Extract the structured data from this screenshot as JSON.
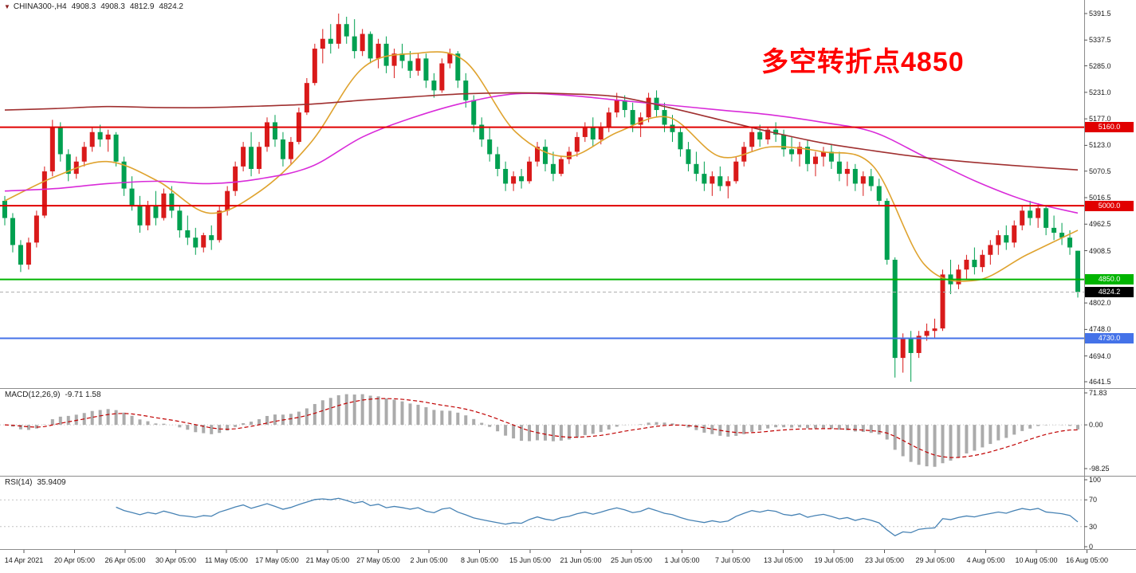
{
  "header": {
    "symbol": "CHINA300-,H4",
    "open": "4908.3",
    "high": "4908.3",
    "low": "4812.9",
    "close": "4824.2"
  },
  "annotation": {
    "text": "多空转折点4850",
    "color": "#FF0000"
  },
  "colors": {
    "bull": "#D91A1A",
    "bear": "#00A050",
    "macd_hist": "#ABABAB",
    "macd_signal": "#C00000",
    "rsi_line": "#4682B4",
    "separator": "#8C8C8C",
    "grid_dotted": "#C4C4C4",
    "current_line": "#B0B0B0"
  },
  "price_axis": {
    "labels": [
      "5391.5",
      "5337.5",
      "5285.0",
      "5231.0",
      "5177.0",
      "5123.0",
      "5070.5",
      "5016.5",
      "4962.5",
      "4908.5",
      "4802.0",
      "4748.0",
      "4694.0",
      "4641.5"
    ]
  },
  "levels": [
    {
      "value": 5160.0,
      "label": "5160.0",
      "color": "#E10000"
    },
    {
      "value": 5000.0,
      "label": "5000.0",
      "color": "#E10000"
    },
    {
      "value": 4850.0,
      "label": "4850.0",
      "color": "#00B400"
    },
    {
      "value": 4730.0,
      "label": "4730.0",
      "color": "#4472E8"
    }
  ],
  "current_price": {
    "value": 4824.2,
    "label": "4824.2",
    "color": "#000000"
  },
  "time_axis": [
    "14 Apr 2021",
    "20 Apr 05:00",
    "26 Apr 05:00",
    "30 Apr 05:00",
    "11 May 05:00",
    "17 May 05:00",
    "21 May 05:00",
    "27 May 05:00",
    "2 Jun 05:00",
    "8 Jun 05:00",
    "15 Jun 05:00",
    "21 Jun 05:00",
    "25 Jun 05:00",
    "1 Jul 05:00",
    "7 Jul 05:00",
    "13 Jul 05:00",
    "19 Jul 05:00",
    "23 Jul 05:00",
    "29 Jul 05:00",
    "4 Aug 05:00",
    "10 Aug 05:00",
    "16 Aug 05:00"
  ],
  "indicators": {
    "macd": {
      "name": "MACD(12,26,9)",
      "values": "-9.71 1.58",
      "axis": [
        "71.83",
        "0.00",
        "-98.25"
      ],
      "fast": 12,
      "slow": 26,
      "signal": 9
    },
    "rsi": {
      "name": "RSI(14)",
      "value": "35.9409",
      "axis": [
        "100",
        "70",
        "30",
        "0"
      ],
      "period": 14,
      "levels": [
        70,
        30
      ]
    }
  },
  "chart_data": {
    "type": "candlestick",
    "symbol": "CHINA300-",
    "timeframe": "H4",
    "ylim": [
      4641.5,
      5391.5
    ],
    "x_labels": [
      "14 Apr 2021",
      "20 Apr 05:00",
      "26 Apr 05:00",
      "30 Apr 05:00",
      "11 May 05:00",
      "17 May 05:00",
      "21 May 05:00",
      "27 May 05:00",
      "2 Jun 05:00",
      "8 Jun 05:00",
      "15 Jun 05:00",
      "21 Jun 05:00",
      "25 Jun 05:00",
      "1 Jul 05:00",
      "7 Jul 05:00",
      "13 Jul 05:00",
      "19 Jul 05:00",
      "23 Jul 05:00",
      "29 Jul 05:00",
      "4 Aug 05:00",
      "10 Aug 05:00",
      "16 Aug 05:00"
    ],
    "horizontal_levels": [
      5160.0,
      5000.0,
      4850.0,
      4730.0
    ],
    "last_price": 4824.2,
    "ohlc": [
      [
        5010,
        5020,
        4960,
        4975
      ],
      [
        4975,
        4985,
        4905,
        4920
      ],
      [
        4920,
        4930,
        4865,
        4880
      ],
      [
        4880,
        4935,
        4870,
        4925
      ],
      [
        4925,
        4990,
        4915,
        4980
      ],
      [
        4980,
        5080,
        4975,
        5070
      ],
      [
        5070,
        5175,
        5060,
        5160
      ],
      [
        5160,
        5170,
        5090,
        5105
      ],
      [
        5105,
        5115,
        5050,
        5065
      ],
      [
        5065,
        5100,
        5055,
        5090
      ],
      [
        5090,
        5130,
        5080,
        5120
      ],
      [
        5120,
        5160,
        5110,
        5150
      ],
      [
        5150,
        5165,
        5120,
        5135
      ],
      [
        5135,
        5155,
        5110,
        5145
      ],
      [
        5145,
        5150,
        5080,
        5090
      ],
      [
        5090,
        5100,
        5020,
        5035
      ],
      [
        5035,
        5060,
        4990,
        5000
      ],
      [
        5000,
        5020,
        4945,
        4960
      ],
      [
        4960,
        5010,
        4950,
        5000
      ],
      [
        5000,
        5030,
        4960,
        4975
      ],
      [
        4975,
        5035,
        4970,
        5025
      ],
      [
        5025,
        5040,
        4975,
        4990
      ],
      [
        4990,
        5000,
        4935,
        4950
      ],
      [
        4950,
        4980,
        4920,
        4935
      ],
      [
        4935,
        4955,
        4900,
        4915
      ],
      [
        4915,
        4945,
        4905,
        4940
      ],
      [
        4940,
        4960,
        4910,
        4930
      ],
      [
        4930,
        5000,
        4925,
        4990
      ],
      [
        4990,
        5040,
        4980,
        5030
      ],
      [
        5030,
        5090,
        5020,
        5080
      ],
      [
        5080,
        5130,
        5070,
        5120
      ],
      [
        5120,
        5150,
        5060,
        5075
      ],
      [
        5075,
        5130,
        5065,
        5120
      ],
      [
        5120,
        5180,
        5110,
        5170
      ],
      [
        5170,
        5185,
        5120,
        5135
      ],
      [
        5135,
        5150,
        5080,
        5095
      ],
      [
        5095,
        5140,
        5085,
        5130
      ],
      [
        5130,
        5200,
        5125,
        5190
      ],
      [
        5190,
        5260,
        5185,
        5250
      ],
      [
        5250,
        5330,
        5245,
        5320
      ],
      [
        5320,
        5360,
        5290,
        5340
      ],
      [
        5340,
        5370,
        5310,
        5330
      ],
      [
        5330,
        5391.5,
        5320,
        5370
      ],
      [
        5370,
        5385,
        5330,
        5345
      ],
      [
        5345,
        5380,
        5300,
        5315
      ],
      [
        5315,
        5360,
        5305,
        5350
      ],
      [
        5350,
        5355,
        5290,
        5300
      ],
      [
        5300,
        5340,
        5280,
        5330
      ],
      [
        5330,
        5345,
        5270,
        5285
      ],
      [
        5285,
        5320,
        5260,
        5310
      ],
      [
        5310,
        5330,
        5280,
        5295
      ],
      [
        5295,
        5315,
        5260,
        5275
      ],
      [
        5275,
        5310,
        5265,
        5300
      ],
      [
        5300,
        5310,
        5240,
        5255
      ],
      [
        5255,
        5270,
        5220,
        5235
      ],
      [
        5235,
        5300,
        5230,
        5290
      ],
      [
        5290,
        5320,
        5280,
        5310
      ],
      [
        5310,
        5315,
        5240,
        5255
      ],
      [
        5255,
        5270,
        5200,
        5215
      ],
      [
        5215,
        5225,
        5150,
        5165
      ],
      [
        5165,
        5180,
        5120,
        5135
      ],
      [
        5135,
        5160,
        5090,
        5105
      ],
      [
        5105,
        5120,
        5060,
        5075
      ],
      [
        5075,
        5090,
        5030,
        5045
      ],
      [
        5045,
        5070,
        5030,
        5060
      ],
      [
        5060,
        5075,
        5035,
        5050
      ],
      [
        5050,
        5100,
        5045,
        5090
      ],
      [
        5090,
        5130,
        5080,
        5120
      ],
      [
        5120,
        5135,
        5070,
        5085
      ],
      [
        5085,
        5110,
        5050,
        5065
      ],
      [
        5065,
        5100,
        5060,
        5095
      ],
      [
        5095,
        5120,
        5085,
        5110
      ],
      [
        5110,
        5150,
        5100,
        5140
      ],
      [
        5140,
        5170,
        5130,
        5160
      ],
      [
        5160,
        5180,
        5120,
        5135
      ],
      [
        5135,
        5170,
        5125,
        5160
      ],
      [
        5160,
        5200,
        5150,
        5190
      ],
      [
        5190,
        5230,
        5180,
        5215
      ],
      [
        5215,
        5225,
        5180,
        5195
      ],
      [
        5195,
        5210,
        5150,
        5165
      ],
      [
        5165,
        5190,
        5140,
        5180
      ],
      [
        5180,
        5230,
        5170,
        5220
      ],
      [
        5220,
        5235,
        5180,
        5195
      ],
      [
        5195,
        5210,
        5150,
        5165
      ],
      [
        5165,
        5185,
        5130,
        5150
      ],
      [
        5150,
        5160,
        5100,
        5115
      ],
      [
        5115,
        5130,
        5070,
        5085
      ],
      [
        5085,
        5110,
        5050,
        5065
      ],
      [
        5065,
        5090,
        5030,
        5045
      ],
      [
        5045,
        5070,
        5020,
        5060
      ],
      [
        5060,
        5080,
        5030,
        5040
      ],
      [
        5040,
        5060,
        5015,
        5050
      ],
      [
        5050,
        5100,
        5045,
        5090
      ],
      [
        5090,
        5130,
        5080,
        5120
      ],
      [
        5120,
        5160,
        5110,
        5150
      ],
      [
        5150,
        5165,
        5120,
        5135
      ],
      [
        5135,
        5160,
        5125,
        5155
      ],
      [
        5155,
        5170,
        5130,
        5145
      ],
      [
        5145,
        5155,
        5100,
        5115
      ],
      [
        5115,
        5140,
        5090,
        5105
      ],
      [
        5105,
        5130,
        5080,
        5120
      ],
      [
        5120,
        5135,
        5070,
        5085
      ],
      [
        5085,
        5110,
        5060,
        5100
      ],
      [
        5100,
        5120,
        5080,
        5110
      ],
      [
        5110,
        5125,
        5075,
        5090
      ],
      [
        5090,
        5110,
        5050,
        5065
      ],
      [
        5065,
        5090,
        5040,
        5075
      ],
      [
        5075,
        5085,
        5030,
        5045
      ],
      [
        5045,
        5070,
        5020,
        5060
      ],
      [
        5060,
        5075,
        5030,
        5040
      ],
      [
        5040,
        5055,
        5000,
        5010
      ],
      [
        5010,
        5015,
        4880,
        4890
      ],
      [
        4890,
        4895,
        4650,
        4690
      ],
      [
        4690,
        4740,
        4660,
        4730
      ],
      [
        4730,
        4745,
        4641.5,
        4700
      ],
      [
        4700,
        4745,
        4690,
        4735
      ],
      [
        4735,
        4760,
        4725,
        4745
      ],
      [
        4745,
        4770,
        4730,
        4750
      ],
      [
        4750,
        4870,
        4745,
        4860
      ],
      [
        4860,
        4890,
        4820,
        4840
      ],
      [
        4840,
        4880,
        4830,
        4870
      ],
      [
        4870,
        4900,
        4850,
        4890
      ],
      [
        4890,
        4915,
        4860,
        4875
      ],
      [
        4875,
        4910,
        4865,
        4900
      ],
      [
        4900,
        4930,
        4880,
        4920
      ],
      [
        4920,
        4950,
        4900,
        4940
      ],
      [
        4940,
        4960,
        4910,
        4925
      ],
      [
        4925,
        4970,
        4915,
        4960
      ],
      [
        4960,
        5000,
        4950,
        4990
      ],
      [
        4990,
        5010,
        4960,
        4975
      ],
      [
        4975,
        5005,
        4955,
        4995
      ],
      [
        4995,
        5000,
        4940,
        4955
      ],
      [
        4955,
        4980,
        4930,
        4945
      ],
      [
        4945,
        4965,
        4920,
        4935
      ],
      [
        4935,
        4950,
        4900,
        4915
      ],
      [
        4908.3,
        4908.3,
        4812.9,
        4824.2
      ]
    ],
    "overlays": [
      {
        "name": "ma-fast",
        "color": "#DFA32F",
        "sampled_at_x_labels": true,
        "points": [
          5010,
          5060,
          5090,
          5050,
          4985,
          5030,
          5130,
          5280,
          5310,
          5295,
          5150,
          5100,
          5150,
          5180,
          5100,
          5120,
          5110,
          5080,
          4880,
          4848,
          4900,
          4950
        ]
      },
      {
        "name": "ma-mid",
        "color": "#D92BD9",
        "sampled_at_x_labels": true,
        "points": [
          5030,
          5035,
          5045,
          5050,
          5045,
          5055,
          5080,
          5140,
          5180,
          5210,
          5228,
          5225,
          5215,
          5205,
          5195,
          5185,
          5170,
          5150,
          5100,
          5050,
          5010,
          4985
        ]
      },
      {
        "name": "ma-slow",
        "color": "#A03030",
        "sampled_at_x_labels": true,
        "points": [
          5195,
          5198,
          5202,
          5200,
          5200,
          5203,
          5207,
          5215,
          5222,
          5228,
          5230,
          5228,
          5222,
          5200,
          5175,
          5150,
          5128,
          5112,
          5098,
          5088,
          5080,
          5073
        ]
      }
    ]
  }
}
